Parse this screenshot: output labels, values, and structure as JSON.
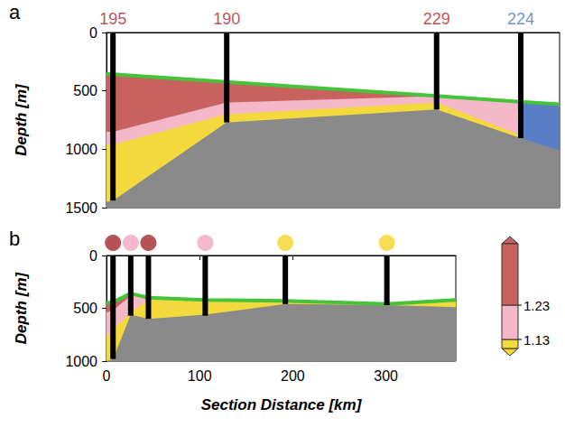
{
  "chart_data": [
    {
      "type": "area",
      "panel": "a",
      "x": [
        0,
        7,
        130,
        357,
        448,
        490
      ],
      "xlim": [
        0,
        490
      ],
      "ylim": [
        0,
        1500
      ],
      "yticks": [
        0,
        500,
        1000,
        1500
      ],
      "y_label": "Depth [m]",
      "tick_labels": "y",
      "grid": false,
      "series": [
        {
          "color": "#c8625f",
          "values": [
            354,
            358,
            423,
            544,
            593,
            615
          ]
        },
        {
          "color": "#f4b8c8",
          "values": [
            850,
            850,
            600,
            545,
            593,
            615
          ]
        },
        {
          "color": "#5a7dc8",
          "values": [
            null,
            null,
            null,
            null,
            593,
            615
          ]
        },
        {
          "color": "#f4d93c",
          "values": [
            960,
            960,
            700,
            600,
            880,
            null
          ]
        },
        {
          "color": "#8a8a8a",
          "values": [
            1450,
            1440,
            770,
            660,
            905,
            1010
          ]
        },
        {
          "type": "line",
          "color": "#45c43a",
          "values": [
            354,
            358,
            423,
            544,
            593,
            615
          ]
        }
      ],
      "stations": {
        "x": [
          7,
          130,
          357,
          448
        ],
        "depth": [
          1440,
          770,
          660,
          905
        ],
        "labels": [
          "195",
          "190",
          "229",
          "224"
        ],
        "colors": [
          "#a3282c",
          "#a3282c",
          "#a3282c",
          "#4a78c0"
        ]
      }
    },
    {
      "type": "area",
      "panel": "b",
      "x": [
        0,
        7,
        26,
        45,
        106,
        192,
        301,
        375
      ],
      "xlim": [
        0,
        375
      ],
      "xticks": [
        0,
        100,
        200,
        300
      ],
      "ylim": [
        0,
        1000
      ],
      "yticks": [
        0,
        500,
        1000
      ],
      "x_label": "Section Distance [km]",
      "y_label": "Depth [m]",
      "grid": false,
      "series": [
        {
          "color": "#c8625f",
          "values": [
            450,
            440,
            360,
            400,
            420,
            430,
            460,
            420
          ]
        },
        {
          "color": "#f4b8c8",
          "values": [
            540,
            520,
            380,
            400,
            420,
            430,
            460,
            420
          ]
        },
        {
          "color": "#f4d93c",
          "values": [
            760,
            700,
            540,
            420,
            420,
            430,
            460,
            420
          ]
        },
        {
          "color": "#8a8a8a",
          "values": [
            1000,
            980,
            560,
            600,
            560,
            460,
            470,
            490
          ]
        },
        {
          "type": "line",
          "color": "#45c43a",
          "values": [
            450,
            440,
            360,
            400,
            420,
            430,
            460,
            420
          ]
        }
      ],
      "stations": {
        "x": [
          7,
          26,
          45,
          106,
          192,
          301
        ],
        "depth": [
          980,
          570,
          600,
          570,
          460,
          470
        ],
        "colors": [
          "#a3282c",
          "#f2a6c0",
          "#a3282c",
          "#f2a6c0",
          "#f2d52a",
          "#f2d52a"
        ],
        "marker": "circle"
      },
      "colorbar": {
        "ticks": [
          1.13,
          1.23
        ],
        "colors": [
          "#f4d93c",
          "#f4b8c8",
          "#c8625f"
        ]
      }
    }
  ]
}
